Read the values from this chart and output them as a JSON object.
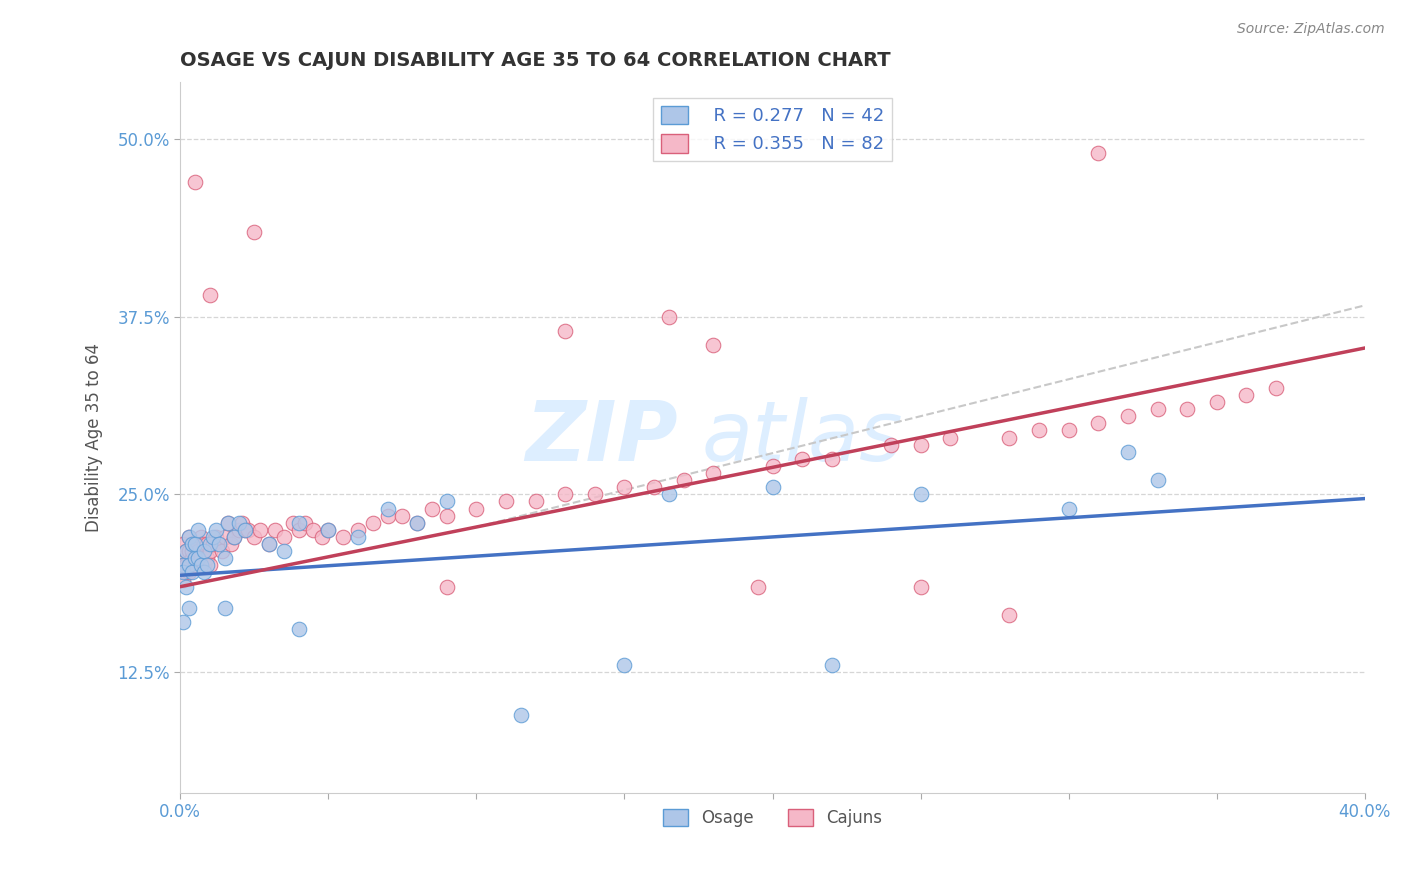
{
  "title": "OSAGE VS CAJUN DISABILITY AGE 35 TO 64 CORRELATION CHART",
  "source_text": "Source: ZipAtlas.com",
  "ylabel": "Disability Age 35 to 64",
  "xlim": [
    0.0,
    0.4
  ],
  "ylim": [
    0.04,
    0.54
  ],
  "yticks": [
    0.125,
    0.25,
    0.375,
    0.5
  ],
  "ytick_labels": [
    "12.5%",
    "25.0%",
    "37.5%",
    "50.0%"
  ],
  "xtick_labels": [
    "0.0%",
    "",
    "",
    "",
    "",
    "",
    "",
    "",
    "40.0%"
  ],
  "osage_color": "#aec6e8",
  "cajun_color": "#f5b8c8",
  "osage_edge_color": "#5b9bd5",
  "cajun_edge_color": "#d9607a",
  "osage_line_color": "#4472c4",
  "cajun_line_color": "#c0405a",
  "dashed_line_color": "#c8c8c8",
  "legend_R_osage": "R = 0.277",
  "legend_N_osage": "N = 42",
  "legend_R_cajun": "R = 0.355",
  "legend_N_cajun": "N = 82",
  "background_color": "#ffffff",
  "grid_color": "#cccccc",
  "title_color": "#333333",
  "watermark_color": "#ddeeff",
  "osage_line_slope": 0.135,
  "osage_line_intercept": 0.193,
  "cajun_line_slope": 0.42,
  "cajun_line_intercept": 0.185,
  "dashed_slope": 0.52,
  "dashed_intercept": 0.175
}
